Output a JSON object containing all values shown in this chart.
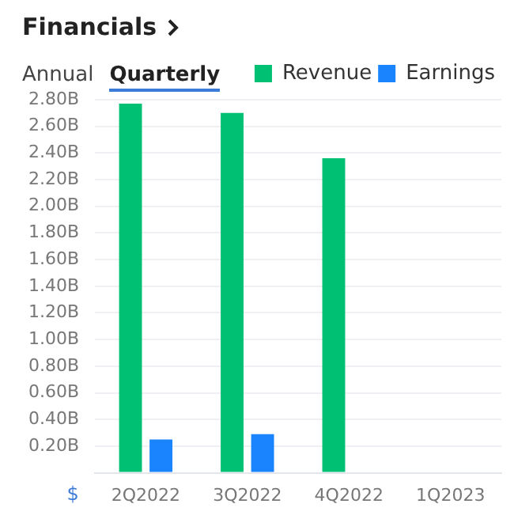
{
  "chart_data": {
    "type": "bar",
    "title": "Financials",
    "ylabel": "$",
    "annotations": [
      "Annual",
      "Quarterly"
    ],
    "categories": [
      "2Q2022",
      "3Q2022",
      "4Q2022",
      "1Q2023"
    ],
    "series": [
      {
        "name": "Revenue",
        "color": "#00c073",
        "values": [
          2.77,
          2.7,
          2.36,
          null
        ]
      },
      {
        "name": "Earnings",
        "color": "#1a84ff",
        "values": [
          0.25,
          0.29,
          null,
          null
        ]
      }
    ],
    "ylim": [
      0,
      2.8
    ],
    "yticks": [
      {
        "value": 0,
        "label": null
      },
      {
        "value": 0.2,
        "label": "0.20B"
      },
      {
        "value": 0.4,
        "label": "0.40B"
      },
      {
        "value": 0.6,
        "label": "0.60B"
      },
      {
        "value": 0.8,
        "label": "0.80B"
      },
      {
        "value": 1.0,
        "label": "1.00B"
      },
      {
        "value": 1.2,
        "label": "1.20B"
      },
      {
        "value": 1.4,
        "label": "1.40B"
      },
      {
        "value": 1.6,
        "label": "1.60B"
      },
      {
        "value": 1.8,
        "label": "1.80B"
      },
      {
        "value": 2.0,
        "label": "2.00B"
      },
      {
        "value": 2.2,
        "label": "2.20B"
      },
      {
        "value": 2.4,
        "label": "2.40B"
      },
      {
        "value": 2.6,
        "label": "2.60B"
      },
      {
        "value": 2.8,
        "label": "2.80B"
      }
    ],
    "grid": "y",
    "legend": "top right"
  }
}
